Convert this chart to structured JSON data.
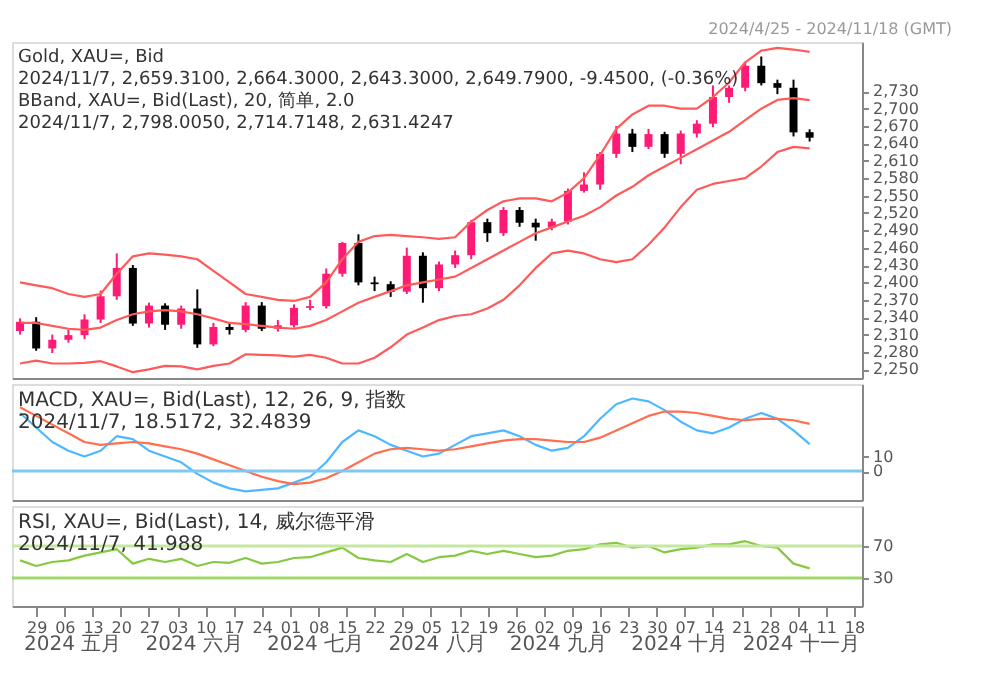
{
  "chart_data": [
    {
      "type": "candlestick",
      "title": "Gold, XAU=, Bid",
      "annotations": [
        "2024/11/7, 2,659.3100, 2,664.3000, 2,643.3000, 2,649.7900, -9.4500, (-0.36%)",
        "BBand, XAU=, Bid(Last), 20, 简单, 2.0",
        "2024/11/7, 2,798.0050, 2,714.7148, 2,631.4247",
        "2024/4/25 - 2024/11/18 (GMT)"
      ],
      "x": [
        "2024-04-25",
        "2024-04-29",
        "2024-05-03",
        "2024-05-07",
        "2024-05-11",
        "2024-05-15",
        "2024-05-19",
        "2024-05-23",
        "2024-05-27",
        "2024-05-31",
        "2024-06-04",
        "2024-06-08",
        "2024-06-12",
        "2024-06-16",
        "2024-06-20",
        "2024-06-24",
        "2024-06-28",
        "2024-07-02",
        "2024-07-06",
        "2024-07-10",
        "2024-07-14",
        "2024-07-18",
        "2024-07-22",
        "2024-07-26",
        "2024-07-30",
        "2024-08-03",
        "2024-08-07",
        "2024-08-11",
        "2024-08-15",
        "2024-08-19",
        "2024-08-23",
        "2024-08-27",
        "2024-08-31",
        "2024-09-04",
        "2024-09-08",
        "2024-09-12",
        "2024-09-16",
        "2024-09-20",
        "2024-09-24",
        "2024-09-28",
        "2024-10-02",
        "2024-10-06",
        "2024-10-10",
        "2024-10-14",
        "2024-10-18",
        "2024-10-22",
        "2024-10-26",
        "2024-10-30",
        "2024-11-03",
        "2024-11-07"
      ],
      "ohlc": [
        [
          2316,
          2338,
          2310,
          2332
        ],
        [
          2332,
          2340,
          2282,
          2286
        ],
        [
          2286,
          2310,
          2278,
          2301
        ],
        [
          2301,
          2318,
          2296,
          2309
        ],
        [
          2309,
          2345,
          2302,
          2336
        ],
        [
          2336,
          2386,
          2330,
          2376
        ],
        [
          2376,
          2450,
          2370,
          2425
        ],
        [
          2425,
          2430,
          2325,
          2329
        ],
        [
          2329,
          2365,
          2322,
          2360
        ],
        [
          2360,
          2364,
          2318,
          2327
        ],
        [
          2327,
          2360,
          2320,
          2355
        ],
        [
          2355,
          2388,
          2287,
          2293
        ],
        [
          2293,
          2330,
          2290,
          2323
        ],
        [
          2323,
          2330,
          2310,
          2318
        ],
        [
          2318,
          2366,
          2314,
          2360
        ],
        [
          2360,
          2366,
          2316,
          2320
        ],
        [
          2320,
          2335,
          2315,
          2326
        ],
        [
          2326,
          2362,
          2322,
          2356
        ],
        [
          2356,
          2370,
          2352,
          2359
        ],
        [
          2359,
          2424,
          2355,
          2415
        ],
        [
          2415,
          2470,
          2410,
          2468
        ],
        [
          2468,
          2483,
          2395,
          2400
        ],
        [
          2400,
          2410,
          2385,
          2397
        ],
        [
          2397,
          2402,
          2375,
          2384
        ],
        [
          2384,
          2460,
          2380,
          2446
        ],
        [
          2446,
          2452,
          2365,
          2390
        ],
        [
          2390,
          2436,
          2385,
          2431
        ],
        [
          2431,
          2455,
          2425,
          2447
        ],
        [
          2447,
          2508,
          2440,
          2504
        ],
        [
          2504,
          2510,
          2470,
          2485
        ],
        [
          2485,
          2530,
          2480,
          2525
        ],
        [
          2525,
          2530,
          2496,
          2503
        ],
        [
          2503,
          2510,
          2472,
          2495
        ],
        [
          2495,
          2510,
          2490,
          2505
        ],
        [
          2505,
          2562,
          2500,
          2558
        ],
        [
          2558,
          2590,
          2555,
          2569
        ],
        [
          2569,
          2625,
          2560,
          2622
        ],
        [
          2622,
          2670,
          2615,
          2657
        ],
        [
          2657,
          2665,
          2625,
          2634
        ],
        [
          2634,
          2665,
          2630,
          2656
        ],
        [
          2656,
          2660,
          2615,
          2622
        ],
        [
          2622,
          2662,
          2604,
          2657
        ],
        [
          2657,
          2680,
          2650,
          2674
        ],
        [
          2674,
          2740,
          2668,
          2720
        ],
        [
          2720,
          2740,
          2710,
          2736
        ],
        [
          2736,
          2780,
          2730,
          2774
        ],
        [
          2774,
          2790,
          2740,
          2744
        ],
        [
          2744,
          2750,
          2725,
          2736
        ],
        [
          2736,
          2750,
          2652,
          2659
        ],
        [
          2659.31,
          2664.3,
          2643.3,
          2649.79
        ]
      ],
      "colors": [
        "#ff1a75",
        "#000000",
        "#ff1a75",
        "#ff1a75",
        "#ff1a75",
        "#ff1a75",
        "#ff1a75",
        "#000000",
        "#ff1a75",
        "#000000",
        "#ff1a75",
        "#000000",
        "#ff1a75",
        "#000000",
        "#ff1a75",
        "#000000",
        "#ff1a75",
        "#ff1a75",
        "#ff1a75",
        "#ff1a75",
        "#ff1a75",
        "#000000",
        "#000000",
        "#000000",
        "#ff1a75",
        "#000000",
        "#ff1a75",
        "#ff1a75",
        "#ff1a75",
        "#000000",
        "#ff1a75",
        "#000000",
        "#000000",
        "#ff1a75",
        "#ff1a75",
        "#ff1a75",
        "#ff1a75",
        "#ff1a75",
        "#000000",
        "#ff1a75",
        "#000000",
        "#ff1a75",
        "#ff1a75",
        "#ff1a75",
        "#ff1a75",
        "#ff1a75",
        "#000000",
        "#000000",
        "#000000",
        "#000000"
      ],
      "series": [
        {
          "type": "line",
          "color": "#ff5a5a",
          "values": [
            2400,
            2395,
            2390,
            2380,
            2375,
            2380,
            2415,
            2445,
            2450,
            2448,
            2445,
            2440,
            2420,
            2400,
            2380,
            2375,
            2370,
            2368,
            2375,
            2400,
            2440,
            2470,
            2480,
            2482,
            2480,
            2478,
            2475,
            2478,
            2505,
            2525,
            2540,
            2545,
            2545,
            2540,
            2555,
            2580,
            2620,
            2665,
            2690,
            2705,
            2705,
            2700,
            2700,
            2720,
            2745,
            2780,
            2800,
            2805,
            2802,
            2798.005
          ]
        },
        {
          "type": "line",
          "color": "#ff5a5a",
          "values": [
            2330,
            2330,
            2325,
            2320,
            2318,
            2322,
            2335,
            2345,
            2350,
            2352,
            2350,
            2345,
            2338,
            2330,
            2328,
            2325,
            2322,
            2320,
            2325,
            2335,
            2350,
            2365,
            2375,
            2385,
            2395,
            2400,
            2405,
            2410,
            2425,
            2440,
            2455,
            2470,
            2485,
            2495,
            2505,
            2515,
            2530,
            2550,
            2565,
            2585,
            2600,
            2615,
            2630,
            2645,
            2660,
            2680,
            2700,
            2715,
            2718,
            2714.7148
          ]
        },
        {
          "type": "line",
          "color": "#ff5a5a",
          "values": [
            2260,
            2265,
            2260,
            2260,
            2261,
            2264,
            2255,
            2245,
            2250,
            2256,
            2255,
            2250,
            2256,
            2260,
            2276,
            2275,
            2274,
            2272,
            2275,
            2270,
            2260,
            2260,
            2270,
            2288,
            2310,
            2322,
            2335,
            2342,
            2345,
            2355,
            2370,
            2395,
            2425,
            2450,
            2455,
            2450,
            2440,
            2435,
            2440,
            2465,
            2495,
            2530,
            2560,
            2570,
            2575,
            2580,
            2600,
            2625,
            2634,
            2631.4247
          ]
        }
      ],
      "xlim": [
        "2024-04-23",
        "2024-11-20"
      ],
      "ylim": [
        2235,
        2815
      ],
      "yticks": [
        {
          "value": 2250,
          "label": "2,250"
        },
        {
          "value": 2280,
          "label": "2,280"
        },
        {
          "value": 2310,
          "label": "2,310"
        },
        {
          "value": 2340,
          "label": "2,340"
        },
        {
          "value": 2370,
          "label": "2,370"
        },
        {
          "value": 2400,
          "label": "2,400"
        },
        {
          "value": 2430,
          "label": "2,430"
        },
        {
          "value": 2460,
          "label": "2,460"
        },
        {
          "value": 2490,
          "label": "2,490"
        },
        {
          "value": 2520,
          "label": "2,520"
        },
        {
          "value": 2550,
          "label": "2,550"
        },
        {
          "value": 2580,
          "label": "2,580"
        },
        {
          "value": 2610,
          "label": "2,610"
        },
        {
          "value": 2640,
          "label": "2,640"
        },
        {
          "value": 2670,
          "label": "2,670"
        },
        {
          "value": 2700,
          "label": "2,700"
        },
        {
          "value": 2730,
          "label": "2,730"
        }
      ],
      "tick_labels": "y"
    },
    {
      "type": "line",
      "title": "MACD, XAU=, Bid(Last), 12, 26, 9, 指数",
      "subtitle": "2024/11/7, 18.5172, 32.4839",
      "x": [
        "2024-04-25",
        "2024-04-29",
        "2024-05-03",
        "2024-05-07",
        "2024-05-11",
        "2024-05-15",
        "2024-05-19",
        "2024-05-23",
        "2024-05-27",
        "2024-05-31",
        "2024-06-04",
        "2024-06-08",
        "2024-06-12",
        "2024-06-16",
        "2024-06-20",
        "2024-06-24",
        "2024-06-28",
        "2024-07-02",
        "2024-07-06",
        "2024-07-10",
        "2024-07-14",
        "2024-07-18",
        "2024-07-22",
        "2024-07-26",
        "2024-07-30",
        "2024-08-03",
        "2024-08-07",
        "2024-08-11",
        "2024-08-15",
        "2024-08-19",
        "2024-08-23",
        "2024-08-27",
        "2024-08-31",
        "2024-09-04",
        "2024-09-08",
        "2024-09-12",
        "2024-09-16",
        "2024-09-20",
        "2024-09-24",
        "2024-09-28",
        "2024-10-02",
        "2024-10-06",
        "2024-10-10",
        "2024-10-14",
        "2024-10-18",
        "2024-10-22",
        "2024-10-26",
        "2024-10-30",
        "2024-11-03",
        "2024-11-07"
      ],
      "series": [
        {
          "color": "#4db8ff",
          "values": [
            40,
            30,
            20,
            14,
            10,
            14,
            24,
            22,
            14,
            10,
            6,
            -2,
            -8,
            -12,
            -14,
            -13,
            -12,
            -8,
            -4,
            6,
            20,
            28,
            24,
            18,
            14,
            10,
            12,
            18,
            24,
            26,
            28,
            24,
            18,
            14,
            16,
            24,
            36,
            46,
            50,
            48,
            42,
            34,
            28,
            26,
            30,
            36,
            40,
            36,
            28,
            18.5172
          ]
        },
        {
          "color": "#ff6f4f",
          "values": [
            44,
            38,
            32,
            26,
            20,
            18,
            19,
            20,
            19,
            17,
            15,
            12,
            8,
            4,
            0,
            -4,
            -7,
            -9,
            -8,
            -5,
            0,
            6,
            12,
            15,
            16,
            15,
            14,
            15,
            17,
            19,
            21,
            22,
            22,
            21,
            20,
            20,
            23,
            28,
            33,
            38,
            41,
            41,
            40,
            38,
            36,
            35,
            36,
            36,
            35,
            32.4839
          ]
        }
      ],
      "ref_lines": [
        {
          "axis": "y",
          "value": 0,
          "color": "#7ec8f5"
        }
      ],
      "xlim": [
        "2024-04-23",
        "2024-11-20"
      ],
      "ylim": [
        -20,
        60
      ],
      "yticks": [
        0,
        10
      ],
      "tick_labels": "y"
    },
    {
      "type": "line",
      "title": "RSI, XAU=, Bid(Last), 14, 威尔德平滑",
      "subtitle": "2024/11/7, 41.988",
      "annotations": [
        "2024 五月",
        "2024 六月",
        "2024 七月",
        "2024 八月",
        "2024 九月",
        "2024 十月",
        "2024 十一月"
      ],
      "x": [
        "2024-04-25",
        "2024-04-29",
        "2024-05-03",
        "2024-05-07",
        "2024-05-11",
        "2024-05-15",
        "2024-05-19",
        "2024-05-23",
        "2024-05-27",
        "2024-05-31",
        "2024-06-04",
        "2024-06-08",
        "2024-06-12",
        "2024-06-16",
        "2024-06-20",
        "2024-06-24",
        "2024-06-28",
        "2024-07-02",
        "2024-07-06",
        "2024-07-10",
        "2024-07-14",
        "2024-07-18",
        "2024-07-22",
        "2024-07-26",
        "2024-07-30",
        "2024-08-03",
        "2024-08-07",
        "2024-08-11",
        "2024-08-15",
        "2024-08-19",
        "2024-08-23",
        "2024-08-27",
        "2024-08-31",
        "2024-09-04",
        "2024-09-08",
        "2024-09-12",
        "2024-09-16",
        "2024-09-20",
        "2024-09-24",
        "2024-09-28",
        "2024-10-02",
        "2024-10-06",
        "2024-10-10",
        "2024-10-14",
        "2024-10-18",
        "2024-10-22",
        "2024-10-26",
        "2024-10-30",
        "2024-11-03",
        "2024-11-07"
      ],
      "series": [
        {
          "color": "#86c940",
          "values": [
            52,
            45,
            50,
            52,
            58,
            62,
            66,
            48,
            54,
            50,
            54,
            45,
            50,
            49,
            55,
            48,
            50,
            55,
            56,
            62,
            68,
            55,
            52,
            50,
            60,
            50,
            56,
            58,
            64,
            60,
            64,
            60,
            56,
            58,
            64,
            66,
            72,
            74,
            68,
            70,
            62,
            66,
            68,
            72,
            72,
            76,
            70,
            68,
            48,
            41.988
          ]
        }
      ],
      "ref_lines": [
        {
          "axis": "y",
          "value": 70,
          "color": "#c5e8a0"
        },
        {
          "axis": "y",
          "value": 30,
          "color": "#9fd86a"
        }
      ],
      "xlim": [
        "2024-04-23",
        "2024-11-20"
      ],
      "ylim": [
        -5,
        120
      ],
      "yticks": [
        30,
        70
      ],
      "xticks": [
        {
          "value": "2024-04-29",
          "label": "29"
        },
        {
          "value": "2024-05-06",
          "label": "06"
        },
        {
          "value": "2024-05-13",
          "label": "13"
        },
        {
          "value": "2024-05-20",
          "label": "20"
        },
        {
          "value": "2024-05-27",
          "label": "27"
        },
        {
          "value": "2024-06-03",
          "label": "03"
        },
        {
          "value": "2024-06-10",
          "label": "10"
        },
        {
          "value": "2024-06-17",
          "label": "17"
        },
        {
          "value": "2024-06-24",
          "label": "24"
        },
        {
          "value": "2024-07-01",
          "label": "01"
        },
        {
          "value": "2024-07-08",
          "label": "08"
        },
        {
          "value": "2024-07-15",
          "label": "15"
        },
        {
          "value": "2024-07-22",
          "label": "22"
        },
        {
          "value": "2024-07-29",
          "label": "29"
        },
        {
          "value": "2024-08-05",
          "label": "05"
        },
        {
          "value": "2024-08-12",
          "label": "12"
        },
        {
          "value": "2024-08-19",
          "label": "19"
        },
        {
          "value": "2024-08-26",
          "label": "26"
        },
        {
          "value": "2024-09-02",
          "label": "02"
        },
        {
          "value": "2024-09-09",
          "label": "09"
        },
        {
          "value": "2024-09-16",
          "label": "16"
        },
        {
          "value": "2024-09-23",
          "label": "23"
        },
        {
          "value": "2024-09-30",
          "label": "30"
        },
        {
          "value": "2024-10-07",
          "label": "07"
        },
        {
          "value": "2024-10-14",
          "label": "14"
        },
        {
          "value": "2024-10-21",
          "label": "21"
        },
        {
          "value": "2024-10-28",
          "label": "28"
        },
        {
          "value": "2024-11-04",
          "label": "04"
        },
        {
          "value": "2024-11-11",
          "label": "11"
        },
        {
          "value": "2024-11-18",
          "label": "18"
        }
      ]
    }
  ]
}
